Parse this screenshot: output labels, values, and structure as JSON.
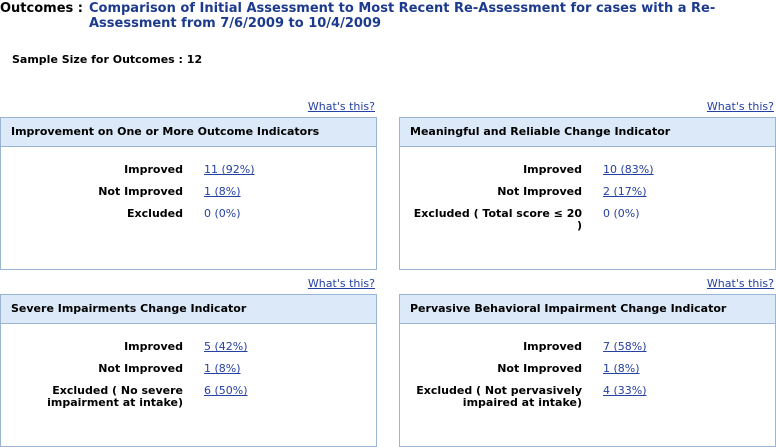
{
  "header": {
    "label": "Outcomes :",
    "title": "Comparison of Initial Assessment to Most Recent Re-Assessment for cases with a Re-Assessment from 7/6/2009 to 10/4/2009"
  },
  "sample_size": {
    "label": "Sample Size for Outcomes :",
    "value": 12
  },
  "panels": [
    {
      "help_link": "What's this?",
      "title": "Improvement on One or More Outcome Indicators",
      "rows": [
        {
          "label": "Improved",
          "value": "11 (92%)",
          "link": true
        },
        {
          "label": "Not Improved",
          "value": "1 (8%)",
          "link": true
        },
        {
          "label": "Excluded",
          "value": "0 (0%)",
          "link": false
        }
      ]
    },
    {
      "help_link": "What's this?",
      "title": "Meaningful and Reliable Change Indicator",
      "rows": [
        {
          "label": "Improved",
          "value": "10 (83%)",
          "link": true
        },
        {
          "label": "Not Improved",
          "value": "2 (17%)",
          "link": true
        },
        {
          "label": "Excluded ( Total score ≤ 20 )",
          "value": "0 (0%)",
          "link": false
        }
      ]
    },
    {
      "help_link": "What's this?",
      "title": "Severe Impairments Change Indicator",
      "rows": [
        {
          "label": "Improved",
          "value": "5 (42%)",
          "link": true
        },
        {
          "label": "Not Improved",
          "value": "1 (8%)",
          "link": true
        },
        {
          "label": "Excluded ( No severe impairment at intake)",
          "value": "6 (50%)",
          "link": true
        }
      ]
    },
    {
      "help_link": "What's this?",
      "title": "Pervasive Behavioral Impairment Change Indicator",
      "rows": [
        {
          "label": "Improved",
          "value": "7 (58%)",
          "link": true
        },
        {
          "label": "Not Improved",
          "value": "1 (8%)",
          "link": true
        },
        {
          "label": "Excluded ( Not pervasively impaired at intake)",
          "value": "4 (33%)",
          "link": true
        }
      ]
    }
  ]
}
